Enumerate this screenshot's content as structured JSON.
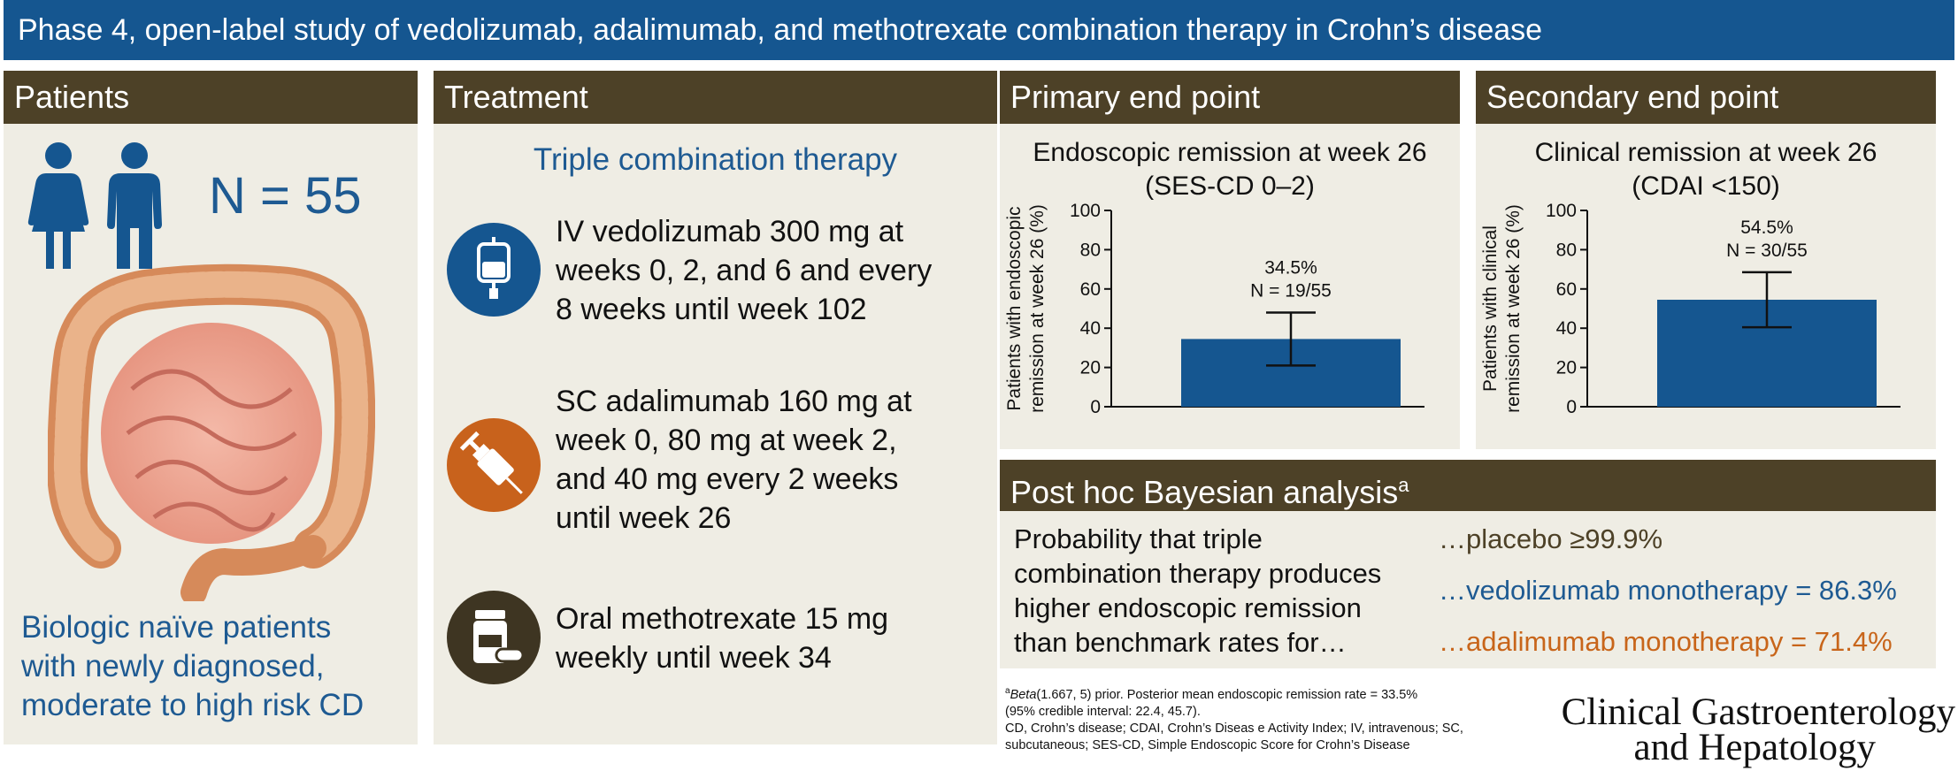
{
  "banner": {
    "title": "Phase 4, open-label study of vedolizumab, adalimumab, and methotrexate combination therapy in Crohn’s disease"
  },
  "patients": {
    "header": "Patients",
    "n_label": "N = 55",
    "desc": [
      "Biologic naïve patients",
      "with newly diagnosed,",
      "moderate to high risk CD"
    ],
    "icons": [
      "female-person-icon",
      "male-person-icon",
      "intestine-illustration"
    ]
  },
  "treatment": {
    "header": "Treatment",
    "subtitle": "Triple combination therapy",
    "items": [
      {
        "icon": "iv-bag-icon",
        "color": "#155690",
        "lines": [
          "IV vedolizumab 300 mg at",
          "weeks 0, 2, and 6 and every",
          "8 weeks until week 102"
        ]
      },
      {
        "icon": "syringe-icon",
        "color": "#c8621c",
        "lines": [
          "SC adalimumab 160 mg at",
          "week 0, 80 mg at week 2,",
          "and 40 mg every 2 weeks",
          "until week 26"
        ]
      },
      {
        "icon": "pill-bottle-icon",
        "color": "#3e3522",
        "lines": [
          "Oral methotrexate 15 mg",
          "weekly until week 34"
        ]
      }
    ]
  },
  "primary": {
    "header": "Primary end point",
    "chart_title": [
      "Endoscopic remission at week 26",
      "(SES-CD 0–2)"
    ]
  },
  "secondary": {
    "header": "Secondary end point",
    "chart_title": [
      "Clinical remission at week 26",
      "(CDAI <150)"
    ]
  },
  "chart_data": [
    {
      "type": "bar",
      "title": "Endoscopic remission at week 26 (SES-CD 0–2)",
      "ylabel": [
        "Patients with endoscopic",
        "remission at week 26 (%)"
      ],
      "ylim": [
        0,
        100
      ],
      "yticks": [
        "0",
        "20",
        "40",
        "60",
        "80",
        "100"
      ],
      "values": [
        34.5
      ],
      "error_low": [
        21
      ],
      "error_high": [
        48
      ],
      "data_labels": [
        "34.5%",
        "N = 19/55"
      ],
      "bar_color": "#155690"
    },
    {
      "type": "bar",
      "title": "Clinical remission at week 26 (CDAI <150)",
      "ylabel": [
        "Patients with clinical",
        "remission at week 26 (%)"
      ],
      "ylim": [
        0,
        100
      ],
      "yticks": [
        "0",
        "20",
        "40",
        "60",
        "80",
        "100"
      ],
      "values": [
        54.5
      ],
      "error_low": [
        40.5
      ],
      "error_high": [
        68.5
      ],
      "data_labels": [
        "54.5%",
        "N = 30/55"
      ],
      "bar_color": "#155690"
    }
  ],
  "bayes": {
    "header": "Post hoc Bayesian analysis",
    "header_sup": "a",
    "lead": [
      "Probability that triple",
      "combination therapy produces",
      "higher endoscopic remission",
      "than benchmark rates for…"
    ],
    "r1": "…placebo ≥99.9%",
    "r2": "…vedolizumab monotherapy = 86.3%",
    "r3": "…adalimumab monotherapy = 71.4%"
  },
  "footnote": {
    "sup": "a",
    "italic": "Beta",
    "l1": "(1.667, 5) prior. Posterior mean endoscopic remission rate = 33.5%",
    "l2": "(95% credible interval: 22.4, 45.7).",
    "l3": "CD, Crohn’s disease; CDAI, Crohn’s Diseas e Activity Index; IV, intravenous; SC,",
    "l4": "subcutaneous; SES-CD, Simple Endoscopic Score for Crohn’s Disease"
  },
  "logo": {
    "line1": "Clinical Gastroenterology",
    "line2": "and Hepatology"
  }
}
